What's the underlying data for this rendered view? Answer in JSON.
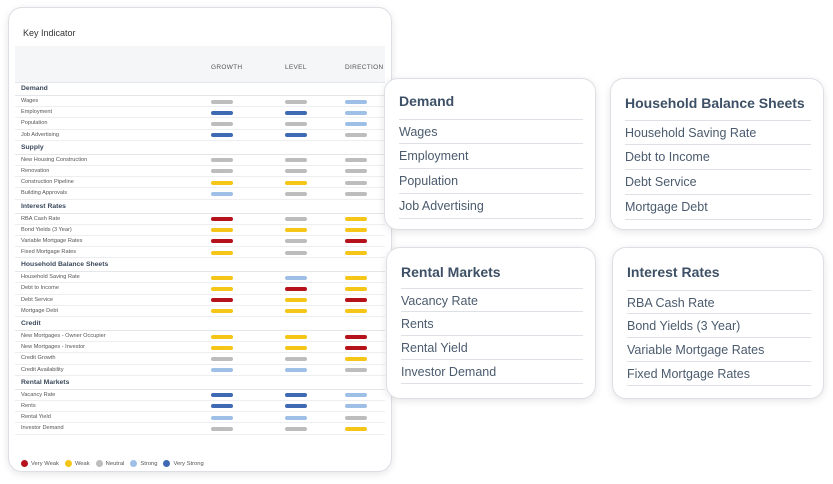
{
  "panel": {
    "title": "Key Indicator",
    "columns": [
      "GROWTH",
      "LEVEL",
      "DIRECTION"
    ]
  },
  "colors": {
    "very_weak": "#b5121b",
    "weak": "#f5c518",
    "neutral": "#bdbdbd",
    "strong": "#9fc0e6",
    "very_strong": "#3f6ab3"
  },
  "sections": [
    {
      "name": "Demand",
      "rows": [
        {
          "label": "Wages",
          "growth": "neutral",
          "level": "neutral",
          "direction": "strong"
        },
        {
          "label": "Employment",
          "growth": "very_strong",
          "level": "very_strong",
          "direction": "strong"
        },
        {
          "label": "Population",
          "growth": "neutral",
          "level": "neutral",
          "direction": "strong"
        },
        {
          "label": "Job Advertising",
          "growth": "very_strong",
          "level": "very_strong",
          "direction": "neutral"
        }
      ]
    },
    {
      "name": "Supply",
      "rows": [
        {
          "label": "New Housing Construction",
          "growth": "neutral",
          "level": "neutral",
          "direction": "neutral"
        },
        {
          "label": "Renovation",
          "growth": "neutral",
          "level": "neutral",
          "direction": "neutral"
        },
        {
          "label": "Construction Pipeline",
          "growth": "weak",
          "level": "weak",
          "direction": "neutral"
        },
        {
          "label": "Building Approvals",
          "growth": "strong",
          "level": "neutral",
          "direction": "neutral"
        }
      ]
    },
    {
      "name": "Interest Rates",
      "rows": [
        {
          "label": "RBA Cash Rate",
          "growth": "very_weak",
          "level": "neutral",
          "direction": "weak"
        },
        {
          "label": "Bond Yields (3 Year)",
          "growth": "weak",
          "level": "weak",
          "direction": "weak"
        },
        {
          "label": "Variable Mortgage Rates",
          "growth": "very_weak",
          "level": "neutral",
          "direction": "very_weak"
        },
        {
          "label": "Fixed Mortgage Rates",
          "growth": "weak",
          "level": "neutral",
          "direction": "weak"
        }
      ]
    },
    {
      "name": "Household Balance Sheets",
      "rows": [
        {
          "label": "Household Saving Rate",
          "growth": "weak",
          "level": "strong",
          "direction": "weak"
        },
        {
          "label": "Debt to Income",
          "growth": "weak",
          "level": "very_weak",
          "direction": "weak"
        },
        {
          "label": "Debt Service",
          "growth": "very_weak",
          "level": "weak",
          "direction": "very_weak"
        },
        {
          "label": "Mortgage Debt",
          "growth": "weak",
          "level": "weak",
          "direction": "weak"
        }
      ]
    },
    {
      "name": "Credit",
      "rows": [
        {
          "label": "New Mortgages - Owner Occupier",
          "growth": "weak",
          "level": "weak",
          "direction": "very_weak"
        },
        {
          "label": "New Mortgages - Investor",
          "growth": "weak",
          "level": "weak",
          "direction": "very_weak"
        },
        {
          "label": "Credit Growth",
          "growth": "neutral",
          "level": "neutral",
          "direction": "weak"
        },
        {
          "label": "Credit Availability",
          "growth": "strong",
          "level": "strong",
          "direction": "neutral"
        }
      ]
    },
    {
      "name": "Rental Markets",
      "rows": [
        {
          "label": "Vacancy Rate",
          "growth": "very_strong",
          "level": "very_strong",
          "direction": "strong"
        },
        {
          "label": "Rents",
          "growth": "very_strong",
          "level": "very_strong",
          "direction": "strong"
        },
        {
          "label": "Rental Yield",
          "growth": "strong",
          "level": "strong",
          "direction": "neutral"
        },
        {
          "label": "Investor Demand",
          "growth": "neutral",
          "level": "neutral",
          "direction": "weak"
        }
      ]
    }
  ],
  "legend": [
    {
      "label": "Very Weak",
      "key": "very_weak"
    },
    {
      "label": "Weak",
      "key": "weak"
    },
    {
      "label": "Neutral",
      "key": "neutral"
    },
    {
      "label": "Strong",
      "key": "strong"
    },
    {
      "label": "Very Strong",
      "key": "very_strong"
    }
  ],
  "cards": {
    "demand": {
      "title": "Demand",
      "items": [
        "Wages",
        "Employment",
        "Population",
        "Job Advertising"
      ]
    },
    "hbs": {
      "title": "Household Balance Sheets",
      "items": [
        "Household Saving Rate",
        "Debt to Income",
        "Debt Service",
        "Mortgage Debt"
      ]
    },
    "rental": {
      "title": "Rental Markets",
      "items": [
        "Vacancy Rate",
        "Rents",
        "Rental Yield",
        "Investor Demand"
      ]
    },
    "ir": {
      "title": "Interest Rates",
      "items": [
        "RBA Cash Rate",
        "Bond Yields (3 Year)",
        "Variable Mortgage Rates",
        "Fixed Mortgage Rates"
      ]
    }
  }
}
